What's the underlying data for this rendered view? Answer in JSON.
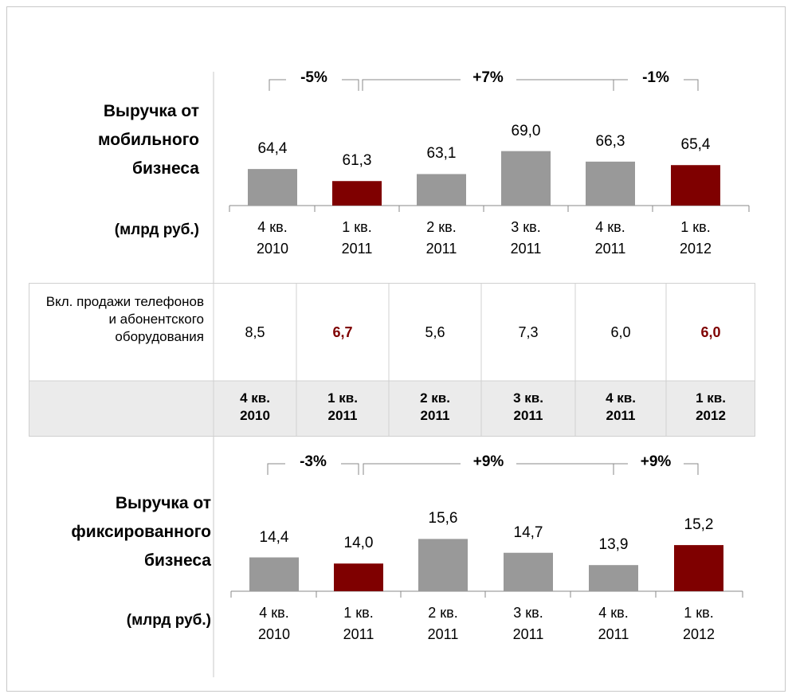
{
  "chart_data": [
    {
      "type": "bar",
      "title": "Выручка от мобильного бизнеса",
      "subtitle": "(млрд руб.)",
      "annotations": [
        "-5%",
        "+7%",
        "-1%"
      ],
      "categories": [
        "4 кв. 2010",
        "1 кв. 2011",
        "2 кв. 2011",
        "3 кв. 2011",
        "4 кв. 2011",
        "1 кв. 2012"
      ],
      "values": [
        64.4,
        61.3,
        63.1,
        69.0,
        66.3,
        65.4
      ],
      "value_labels": [
        "64,4",
        "61,3",
        "63,1",
        "69,0",
        "66,3",
        "65,4"
      ],
      "colors": [
        "#999999",
        "#7f0000",
        "#999999",
        "#999999",
        "#999999",
        "#7f0000"
      ],
      "ylim": [
        55,
        72
      ]
    },
    {
      "type": "bar",
      "title": "Выручка от фиксированного бизнеса",
      "subtitle": "(млрд руб.)",
      "annotations": [
        "-3%",
        "+9%",
        "+9%"
      ],
      "categories": [
        "4 кв. 2010",
        "1 кв. 2011",
        "2 кв. 2011",
        "3 кв. 2011",
        "4 кв. 2011",
        "1 кв. 2012"
      ],
      "values": [
        14.4,
        14.0,
        15.6,
        14.7,
        13.9,
        15.2
      ],
      "value_labels": [
        "14,4",
        "14,0",
        "15,6",
        "14,7",
        "13,9",
        "15,2"
      ],
      "colors": [
        "#999999",
        "#7f0000",
        "#999999",
        "#999999",
        "#999999",
        "#7f0000"
      ],
      "ylim": [
        12.2,
        16.5
      ]
    }
  ],
  "table": {
    "label": "Вкл. продажи телефонов и абонентского оборудования",
    "values": [
      "8,5",
      "6,7",
      "5,6",
      "7,3",
      "6,0",
      "6,0"
    ],
    "highlight": [
      false,
      true,
      false,
      false,
      false,
      true
    ],
    "highlight_color": "#7f0000",
    "categories": [
      "4 кв. 2010",
      "1 кв. 2011",
      "2 кв. 2011",
      "3 кв. 2011",
      "4 кв. 2011",
      "1 кв. 2012"
    ]
  }
}
